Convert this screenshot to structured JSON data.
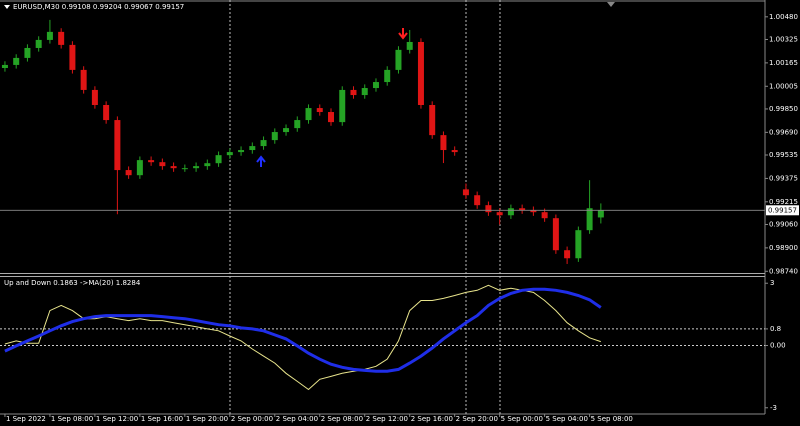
{
  "chart_data": [
    {
      "type": "candlestick",
      "title": "EURUSD,M30  0.99108 0.99204 0.99067 0.99157",
      "up_color": "#25a325",
      "down_color": "#e01515",
      "open": [
        1.0013,
        1.00151,
        1.00199,
        1.00267,
        1.00322,
        1.00377,
        1.00288,
        1.00117,
        0.9998,
        0.99877,
        0.99774,
        0.99432,
        0.99397,
        0.995,
        0.99486,
        0.99459,
        0.99445,
        0.99445,
        0.99459,
        0.99479,
        0.99534,
        0.99555,
        0.99569,
        0.99596,
        0.99637,
        0.99692,
        0.99719,
        0.99774,
        0.99856,
        0.99829,
        0.9976,
        0.9998,
        0.99945,
        0.99993,
        1.00034,
        1.00117,
        1.00254,
        1.00308,
        0.99877,
        0.99671,
        0.99569,
        0.993,
        0.9926,
        0.99192,
        0.99144,
        0.99123,
        0.99171,
        0.99158,
        0.99144,
        0.99103,
        0.98884,
        0.98829,
        0.99021,
        0.99108
      ],
      "high": [
        1.00176,
        1.00224,
        1.00292,
        1.00347,
        1.00459,
        1.00402,
        1.00313,
        1.00142,
        1.00005,
        0.99902,
        0.99799,
        0.99457,
        0.99525,
        0.99525,
        0.99511,
        0.99484,
        0.9947,
        0.99484,
        0.99504,
        0.99559,
        0.9958,
        0.99594,
        0.99621,
        0.99662,
        0.99717,
        0.99744,
        0.99799,
        0.99881,
        0.99881,
        0.99854,
        1.00005,
        1.00005,
        1.00018,
        1.00059,
        1.00142,
        1.00279,
        1.0039,
        1.00333,
        0.99902,
        0.99696,
        0.99594,
        0.9934,
        0.99285,
        0.99217,
        0.99169,
        0.99196,
        0.99196,
        0.99183,
        0.99169,
        0.99128,
        0.98909,
        0.99046,
        0.99363,
        0.99204
      ],
      "low": [
        1.00105,
        1.00126,
        1.00174,
        1.00242,
        1.00297,
        1.00263,
        1.00092,
        0.99955,
        0.99852,
        0.99749,
        0.9913,
        0.99372,
        0.99372,
        0.99461,
        0.99434,
        0.9942,
        0.9942,
        0.9942,
        0.99434,
        0.99454,
        0.99509,
        0.9953,
        0.99544,
        0.99571,
        0.99612,
        0.99667,
        0.99694,
        0.99749,
        0.99804,
        0.99735,
        0.99735,
        0.9992,
        0.9992,
        0.99968,
        1.00009,
        1.00092,
        1.00229,
        0.99852,
        0.99646,
        0.9948,
        0.9953,
        0.99235,
        0.99167,
        0.99119,
        0.9906,
        0.99098,
        0.99133,
        0.99119,
        0.99078,
        0.98859,
        0.9879,
        0.98804,
        0.98996,
        0.99067
      ],
      "close": [
        1.00151,
        1.00199,
        1.00267,
        1.00322,
        1.00377,
        1.00288,
        1.00117,
        0.9998,
        0.99877,
        0.99774,
        0.99432,
        0.99397,
        0.995,
        0.99486,
        0.99459,
        0.99445,
        0.99445,
        0.99459,
        0.99479,
        0.99534,
        0.99555,
        0.99569,
        0.99596,
        0.99637,
        0.99692,
        0.99719,
        0.99774,
        0.99856,
        0.99829,
        0.9976,
        0.9998,
        0.99945,
        0.99993,
        1.00034,
        1.00117,
        1.00254,
        1.00308,
        0.99877,
        0.99671,
        0.99569,
        0.99555,
        0.9926,
        0.99192,
        0.99144,
        0.99123,
        0.99171,
        0.99158,
        0.99144,
        0.99103,
        0.98884,
        0.98829,
        0.99021,
        0.99171,
        0.99157
      ],
      "last_price": 0.99157,
      "xlim": [
        -0.44,
        67.6
      ],
      "ylim": [
        0.98735,
        1.00595
      ],
      "yticks": [
        {
          "value": 1.0048,
          "label": "1.00480"
        },
        1.00325,
        1.00165,
        1.00005,
        {
          "value": 0.9985,
          "label": "0.99850"
        },
        {
          "value": 0.9969,
          "label": "0.99690"
        },
        0.99535,
        0.99375,
        0.99215,
        {
          "value": 0.9906,
          "label": "0.99060"
        },
        {
          "value": 0.989,
          "label": "0.98900"
        },
        {
          "value": 0.9874,
          "label": "0.98740"
        }
      ]
    },
    {
      "type": "line",
      "title": "Up and Down 0.1863 ->MA(20) 1.8284",
      "series": [
        {
          "color": "#e8e48c",
          "values": [
            0.07,
            0.22,
            0.11,
            0.11,
            1.68,
            1.93,
            1.68,
            1.29,
            1.29,
            1.39,
            1.29,
            1.2,
            1.29,
            1.2,
            1.2,
            1.1,
            1.0,
            0.9,
            0.8,
            0.71,
            0.46,
            0.22,
            -0.17,
            -0.51,
            -0.85,
            -1.34,
            -1.73,
            -2.12,
            -1.63,
            -1.49,
            -1.34,
            -1.24,
            -1.15,
            -1.0,
            -0.66,
            0.22,
            1.68,
            2.17,
            2.17,
            2.27,
            2.41,
            2.56,
            2.66,
            2.9,
            2.66,
            2.76,
            2.66,
            2.56,
            2.17,
            1.68,
            1.1,
            0.71,
            0.37,
            0.19
          ]
        },
        {
          "color": "#1f2ee8",
          "values": [
            -0.27,
            -0.02,
            0.22,
            0.46,
            0.71,
            0.95,
            1.15,
            1.29,
            1.39,
            1.44,
            1.44,
            1.44,
            1.44,
            1.44,
            1.39,
            1.34,
            1.29,
            1.2,
            1.1,
            1.0,
            0.95,
            0.85,
            0.8,
            0.71,
            0.51,
            0.32,
            -0.02,
            -0.37,
            -0.66,
            -0.9,
            -1.05,
            -1.15,
            -1.2,
            -1.24,
            -1.24,
            -1.15,
            -0.85,
            -0.51,
            -0.12,
            0.32,
            0.71,
            1.1,
            1.44,
            1.93,
            2.27,
            2.51,
            2.66,
            2.71,
            2.71,
            2.66,
            2.56,
            2.41,
            2.2,
            1.83
          ]
        }
      ],
      "xlim": [
        -0.44,
        67.6
      ],
      "ylim": [
        -3.3,
        3.3
      ],
      "yticks": [
        3,
        0.8,
        {
          "value": 0,
          "label": "0.00"
        },
        -3
      ],
      "xticks": [
        {
          "value": 0,
          "label": "1 Sep 2022"
        },
        {
          "value": 4,
          "label": "1 Sep 08:00"
        },
        {
          "value": 8,
          "label": "1 Sep 12:00"
        },
        {
          "value": 12,
          "label": "1 Sep 16:00"
        },
        {
          "value": 16,
          "label": "1 Sep 20:00"
        },
        {
          "value": 20,
          "label": "2 Sep 00:00"
        },
        {
          "value": 24,
          "label": "2 Sep 04:00"
        },
        {
          "value": 28,
          "label": "2 Sep 08:00"
        },
        {
          "value": 32,
          "label": "2 Sep 12:00"
        },
        {
          "value": 36,
          "label": "2 Sep 16:00"
        },
        {
          "value": 40,
          "label": "2 Sep 20:00"
        },
        {
          "value": 44,
          "label": "5 Sep 00:00"
        },
        {
          "value": 48,
          "label": "5 Sep 04:00"
        },
        {
          "value": 52,
          "label": "5 Sep 08:00"
        }
      ]
    }
  ]
}
